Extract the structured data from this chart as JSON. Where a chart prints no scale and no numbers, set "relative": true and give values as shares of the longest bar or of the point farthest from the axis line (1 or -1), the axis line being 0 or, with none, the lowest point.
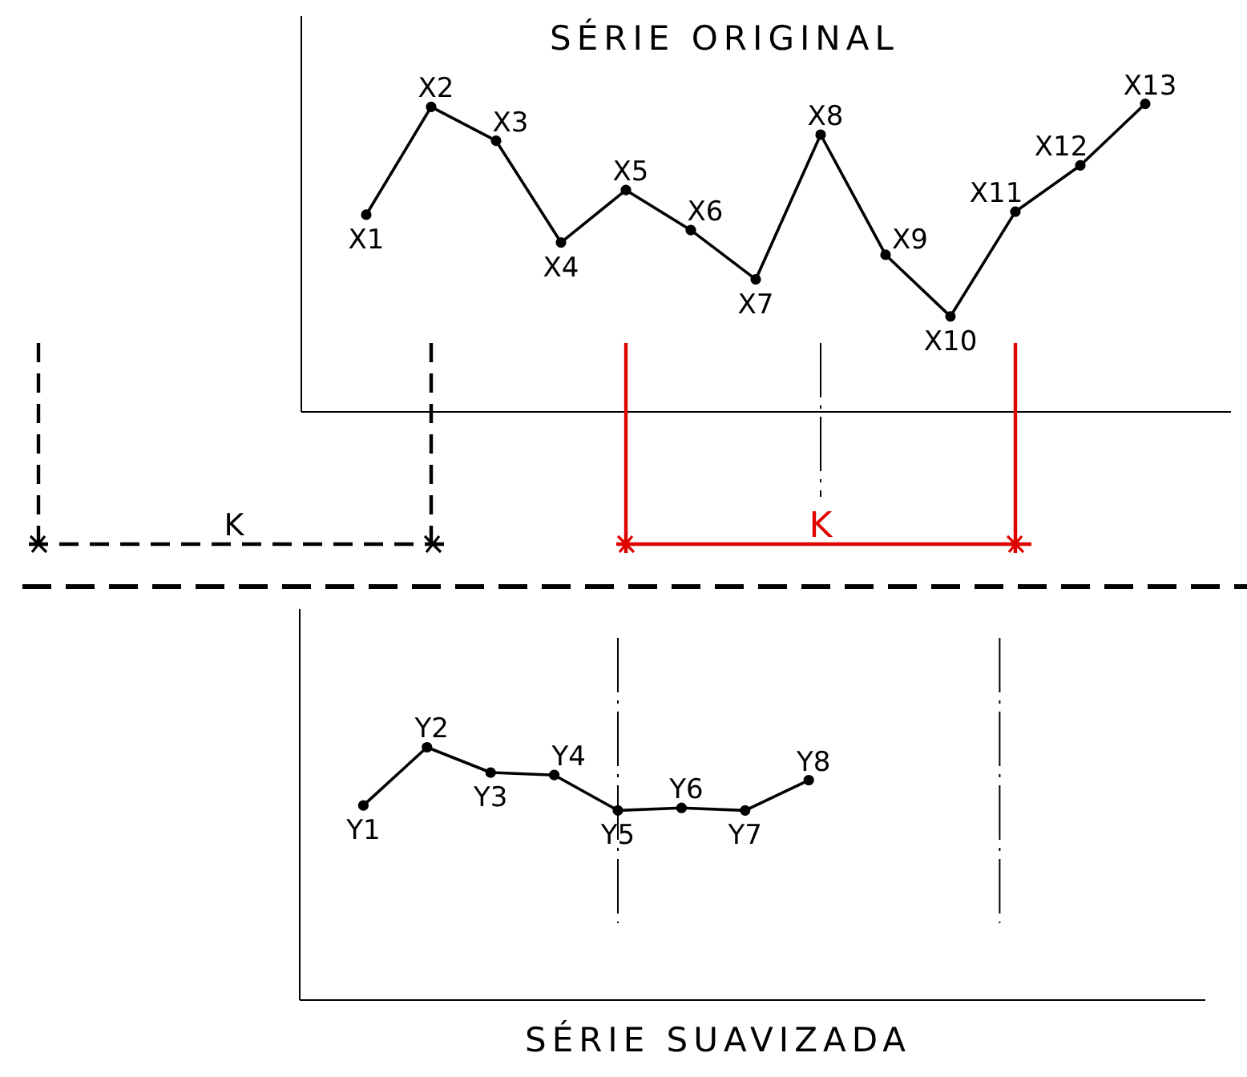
{
  "chart_data": [
    {
      "type": "line",
      "title": "SÉRIE ORIGINAL",
      "relative": true,
      "marker": "circle",
      "categories": [
        "X1",
        "X2",
        "X3",
        "X4",
        "X5",
        "X6",
        "X7",
        "X8",
        "X9",
        "X10",
        "X11",
        "X12",
        "X13"
      ],
      "series": [
        {
          "color": "#000000",
          "values": [
            0.64,
            0.99,
            0.88,
            0.55,
            0.72,
            0.59,
            0.43,
            0.9,
            0.51,
            0.31,
            0.65,
            0.8,
            1
          ]
        }
      ],
      "ref_lines": [
        {
          "axis": "x",
          "value": "X2",
          "color": "#000000",
          "line_style": "dashed"
        },
        {
          "axis": "x",
          "value": "X5",
          "color": "#e00000"
        },
        {
          "axis": "x",
          "value": "X11",
          "color": "#e00000"
        }
      ],
      "annotations": [
        "K",
        "K"
      ]
    },
    {
      "type": "line",
      "title": "SÉRIE SUAVIZADA",
      "relative": true,
      "marker": "circle",
      "categories": [
        "Y1",
        "Y2",
        "Y3",
        "Y4",
        "Y5",
        "Y6",
        "Y7",
        "Y8"
      ],
      "series": [
        {
          "color": "#000000",
          "values": [
            0.77,
            1,
            0.9,
            0.89,
            0.75,
            0.76,
            0.75,
            0.87
          ]
        }
      ]
    }
  ]
}
